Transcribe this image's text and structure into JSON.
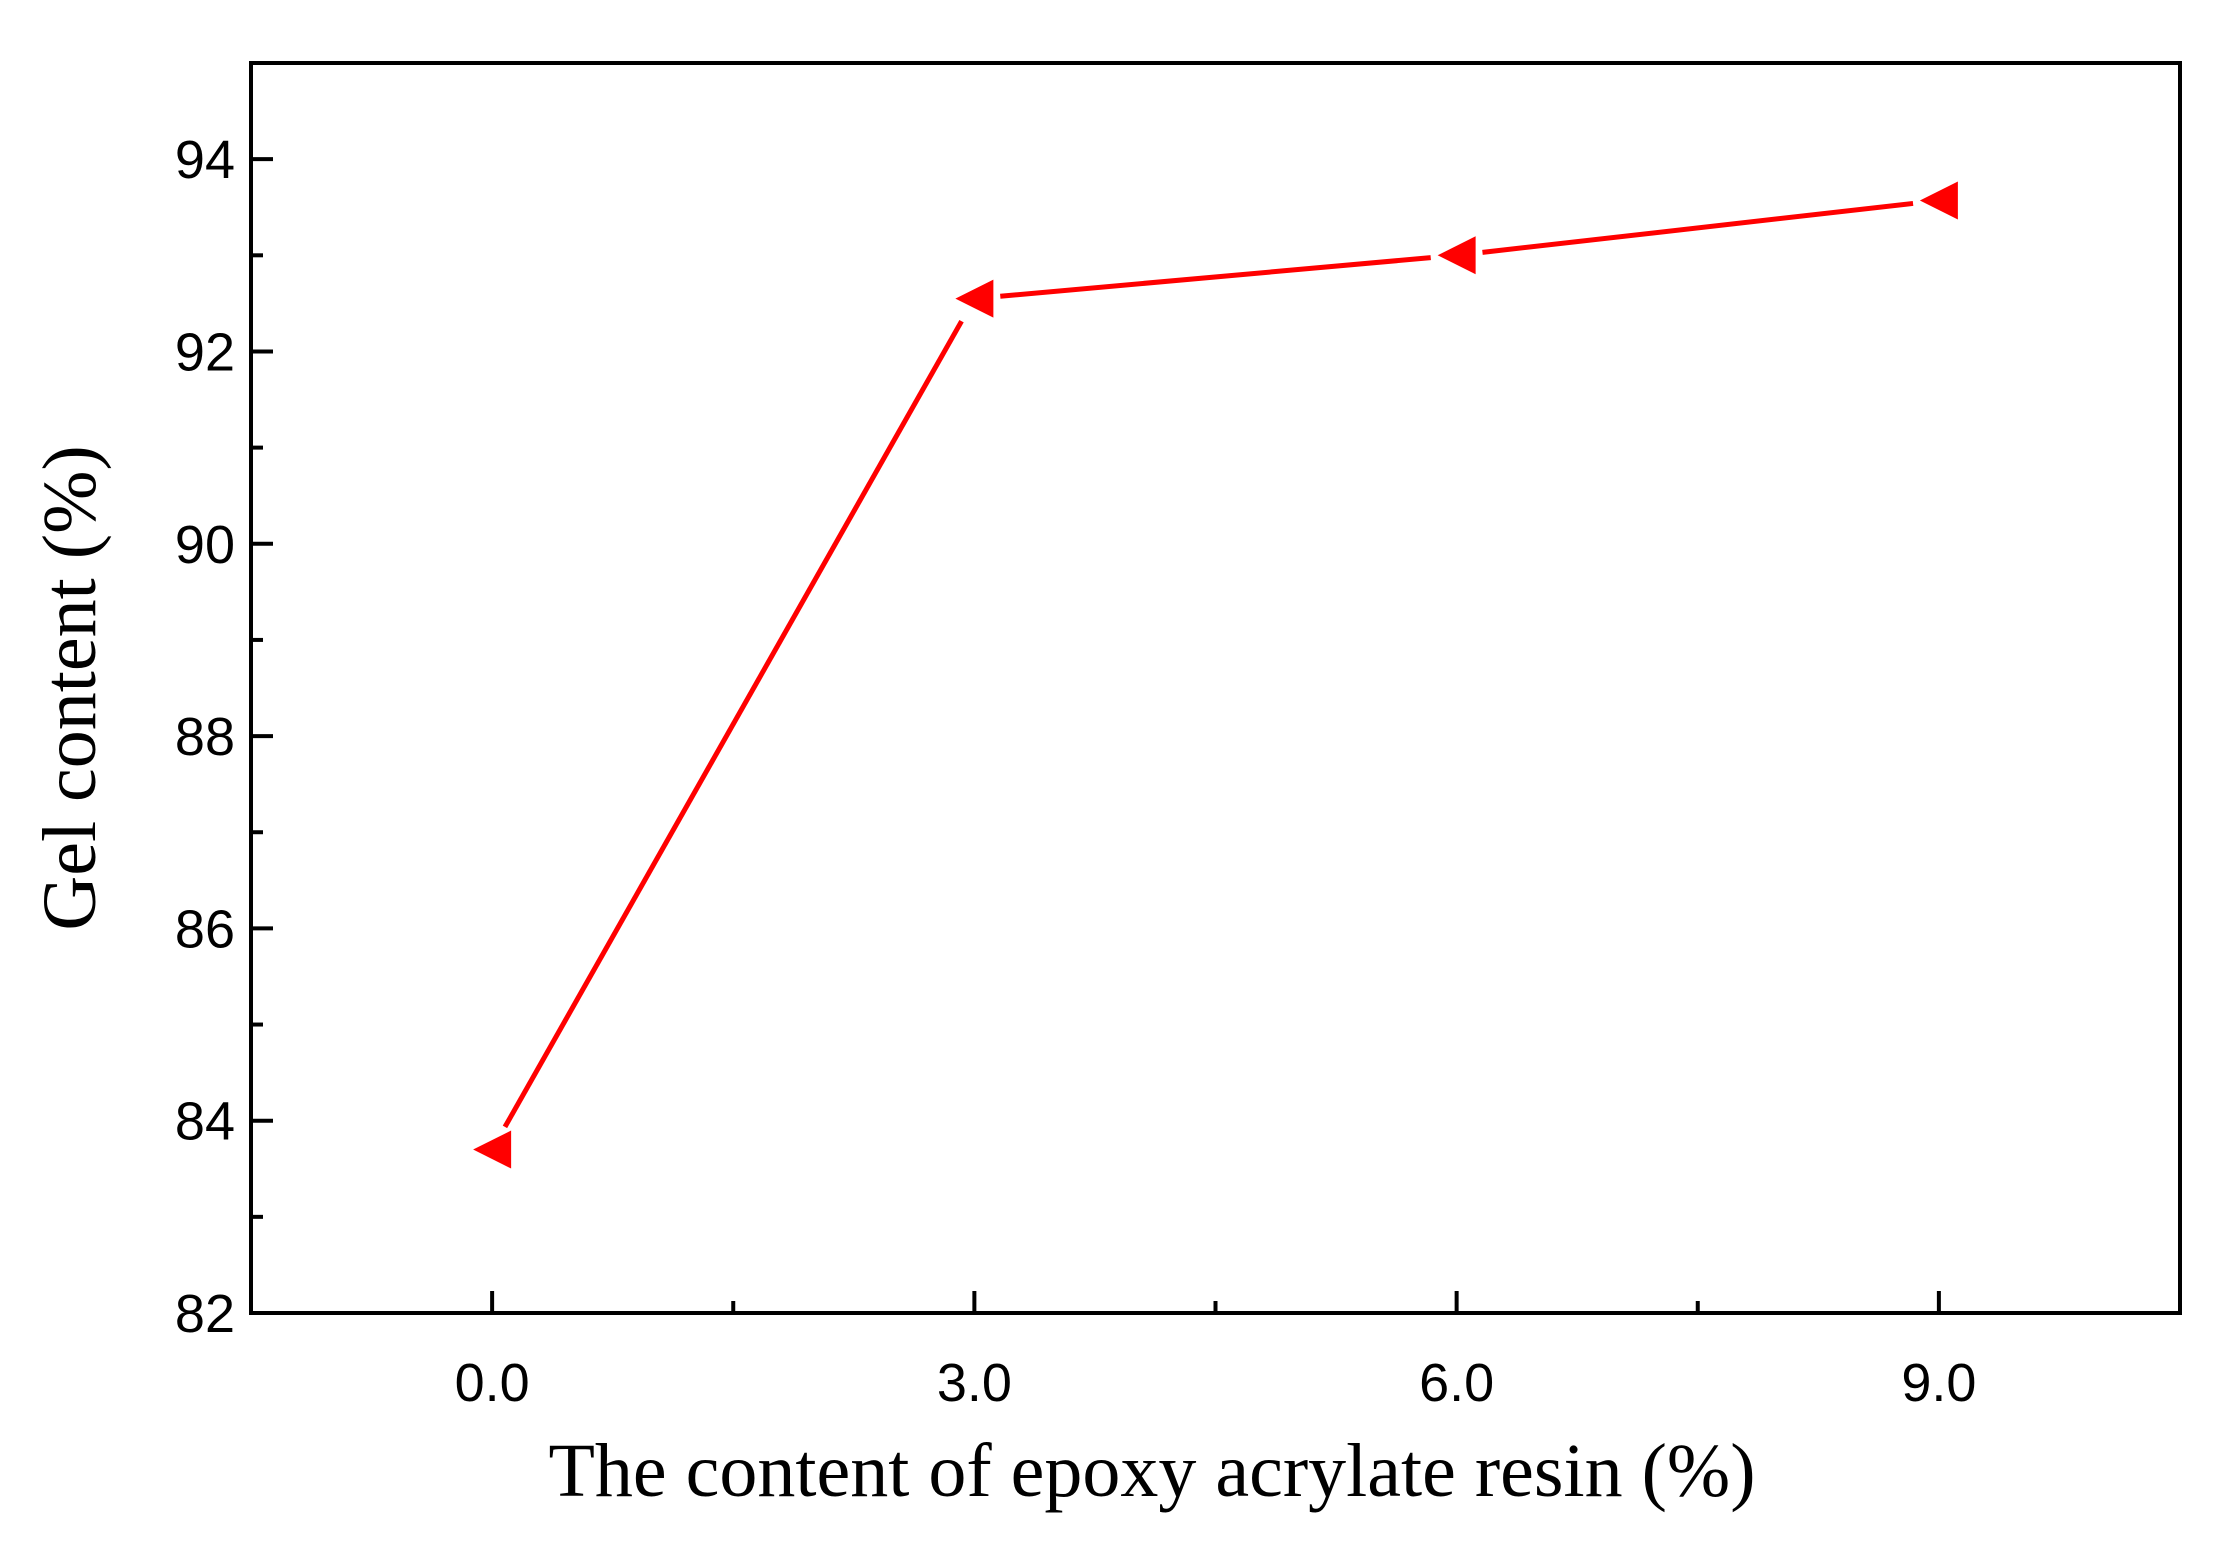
{
  "chart_data": {
    "type": "line",
    "xlabel": "The content of epoxy acrylate resin (%)",
    "ylabel": "Gel content (%)",
    "xlim": [
      -1.5,
      10.5
    ],
    "ylim": [
      82,
      95
    ],
    "x_ticks": [
      "0.0",
      "3.0",
      "6.0",
      "9.0"
    ],
    "x_tick_values": [
      0,
      3,
      6,
      9
    ],
    "x_minor_ticks": [
      1.5,
      4.5,
      7.5
    ],
    "y_ticks": [
      "82",
      "84",
      "86",
      "88",
      "90",
      "92",
      "94"
    ],
    "y_tick_values": [
      82,
      84,
      86,
      88,
      90,
      92,
      94
    ],
    "y_minor_ticks": [
      83,
      85,
      87,
      89,
      91,
      93
    ],
    "grid": false,
    "series": [
      {
        "color": "#ff0000",
        "marker": "left-triangle",
        "points": [
          {
            "x": 0,
            "y": 83.7
          },
          {
            "x": 3,
            "y": 92.55
          },
          {
            "x": 6,
            "y": 93.0
          },
          {
            "x": 9,
            "y": 93.57
          }
        ]
      }
    ]
  }
}
